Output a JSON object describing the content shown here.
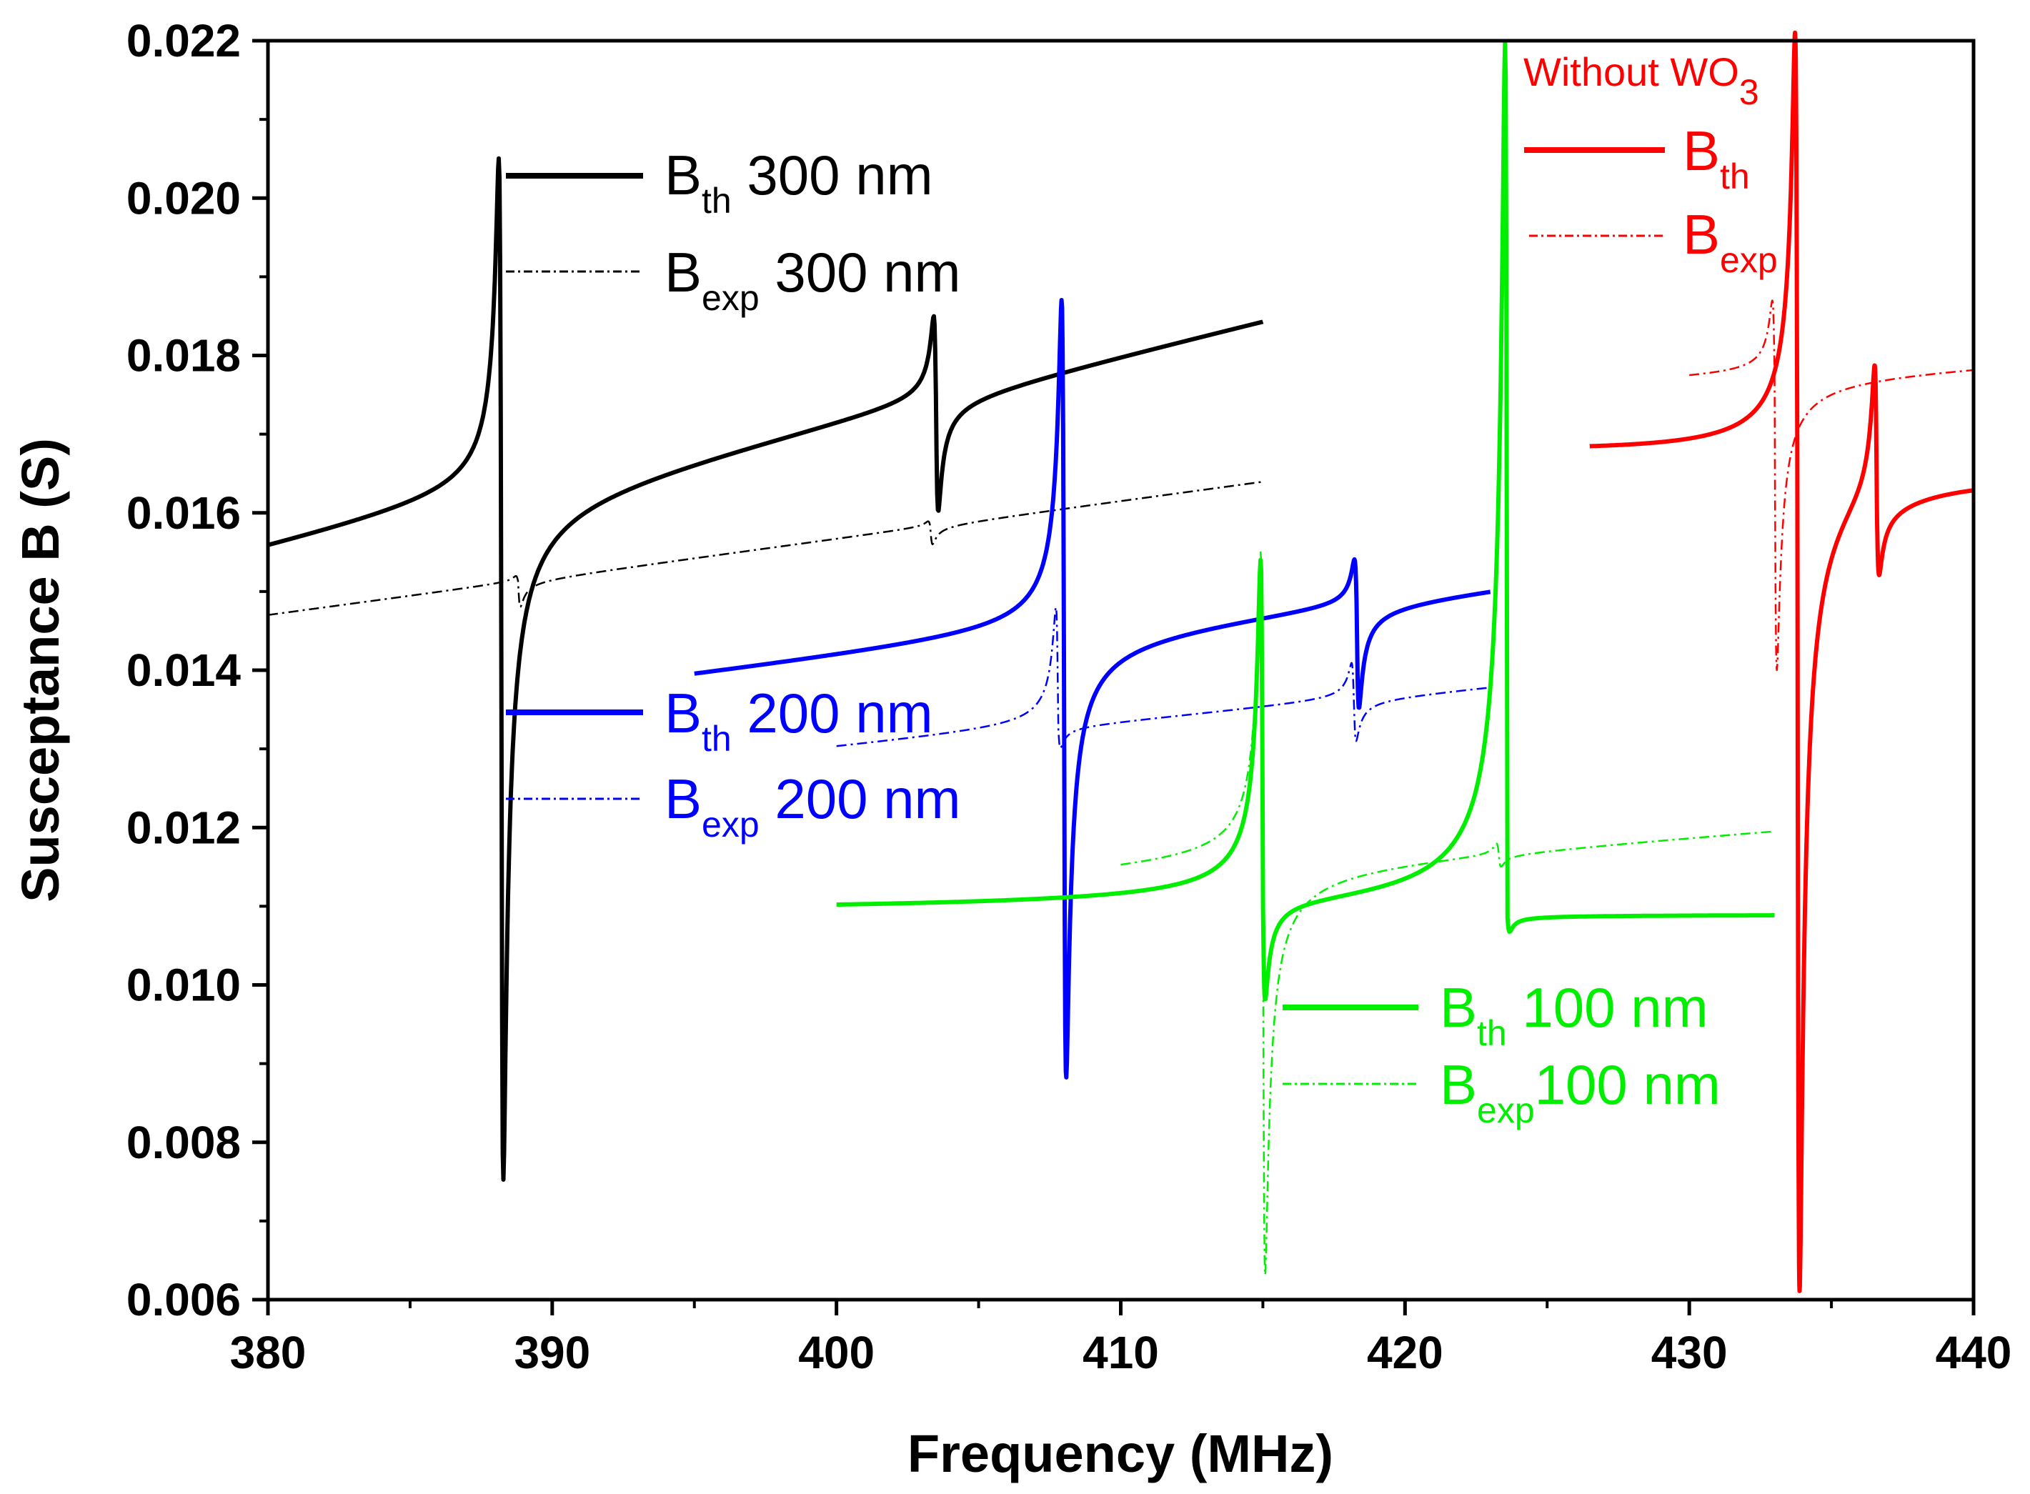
{
  "chart_data": {
    "type": "line",
    "title": "",
    "xlabel": "Frequency (MHz)",
    "ylabel": "Susceptance B (S)",
    "xlim": [
      380,
      440
    ],
    "ylim": [
      0.006,
      0.022
    ],
    "xticks": [
      "380",
      "390",
      "400",
      "410",
      "420",
      "430",
      "440"
    ],
    "yticks": [
      "0.006",
      "0.008",
      "0.010",
      "0.012",
      "0.014",
      "0.016",
      "0.018",
      "0.020",
      "0.022"
    ],
    "grid": false,
    "series": [
      {
        "name": "Bth 300 nm",
        "color": "#000000",
        "style": "solid",
        "x_range": [
          380,
          415
        ],
        "base": [
          0.0155,
          0.0185
        ],
        "resonances": [
          {
            "x": 388.2,
            "max": 0.0205,
            "min": 0.0075
          },
          {
            "x": 403.5,
            "max": 0.0186,
            "min": 0.0161
          }
        ]
      },
      {
        "name": "Bexp 300 nm",
        "color": "#000000",
        "style": "dashdot",
        "x_range": [
          380,
          415
        ],
        "base": [
          0.0147,
          0.0164
        ],
        "resonances": [
          {
            "x": 388.8,
            "max": 0.0152,
            "min": 0.0148
          },
          {
            "x": 403.3,
            "max": 0.0159,
            "min": 0.0156
          }
        ]
      },
      {
        "name": "Bth 200 nm",
        "color": "#0000ff",
        "style": "solid",
        "x_range": [
          395,
          423
        ],
        "base": [
          0.0139,
          0.0151
        ],
        "resonances": [
          {
            "x": 408,
            "max": 0.0187,
            "min": 0.0088
          },
          {
            "x": 418.3,
            "max": 0.0155,
            "min": 0.0136
          }
        ]
      },
      {
        "name": "Bexp 200 nm",
        "color": "#0000ff",
        "style": "dashdot",
        "x_range": [
          400,
          423
        ],
        "base": [
          0.013,
          0.0138
        ],
        "resonances": [
          {
            "x": 407.8,
            "max": 0.0148,
            "min": 0.013
          },
          {
            "x": 418.2,
            "max": 0.0141,
            "min": 0.0131
          }
        ]
      },
      {
        "name": "Bth 100 nm",
        "color": "#00ee00",
        "style": "solid",
        "x_range": [
          400,
          433
        ],
        "base": [
          0.0109,
          0.0109
        ],
        "resonances": [
          {
            "x": 415,
            "max": 0.0152,
            "min": 0.0096
          },
          {
            "x": 423.6,
            "max": 0.022,
            "min": 0.0107
          }
        ]
      },
      {
        "name": "Bexp 100 nm",
        "color": "#00ee00",
        "style": "dashdot",
        "x_range": [
          410,
          433
        ],
        "base": [
          0.0114,
          0.012
        ],
        "resonances": [
          {
            "x": 415,
            "max": 0.0155,
            "min": 0.0063
          },
          {
            "x": 423.3,
            "max": 0.0119,
            "min": 0.0116
          }
        ]
      },
      {
        "name": "Bth",
        "color": "#ff0000",
        "style": "solid",
        "x_range": [
          426.5,
          440
        ],
        "base": [
          0.0167,
          0.0166
        ],
        "resonances": [
          {
            "x": 433.8,
            "max": 0.022,
            "min": 0.006
          },
          {
            "x": 436.6,
            "max": 0.0185,
            "min": 0.0158
          }
        ]
      },
      {
        "name": "Bexp",
        "color": "#ff0000",
        "style": "dashdot",
        "x_range": [
          430,
          440
        ],
        "base": [
          0.0177,
          0.0179
        ],
        "resonances": [
          {
            "x": 433,
            "max": 0.0187,
            "min": 0.014
          }
        ]
      }
    ]
  },
  "legend": {
    "group_300": {
      "th_main": "B",
      "th_sub": "th",
      "th_suffix": " 300 nm",
      "exp_main": "B",
      "exp_sub": "exp",
      "exp_suffix": " 300 nm"
    },
    "group_200": {
      "th_main": "B",
      "th_sub": "th",
      "th_suffix": " 200 nm",
      "exp_main": "B",
      "exp_sub": "exp",
      "exp_suffix": " 200 nm"
    },
    "group_100": {
      "th_main": "B",
      "th_sub": "th",
      "th_suffix": " 100 nm",
      "exp_main": "B",
      "exp_sub": "exp",
      "exp_suffix": "100 nm"
    },
    "group_none": {
      "title_main": "Without WO",
      "title_sub": "3",
      "th_main": "B",
      "th_sub": "th",
      "exp_main": "B",
      "exp_sub": "exp"
    }
  },
  "colors": {
    "black": "#000000",
    "blue": "#0000ff",
    "green": "#00ee00",
    "red": "#ff0000"
  }
}
